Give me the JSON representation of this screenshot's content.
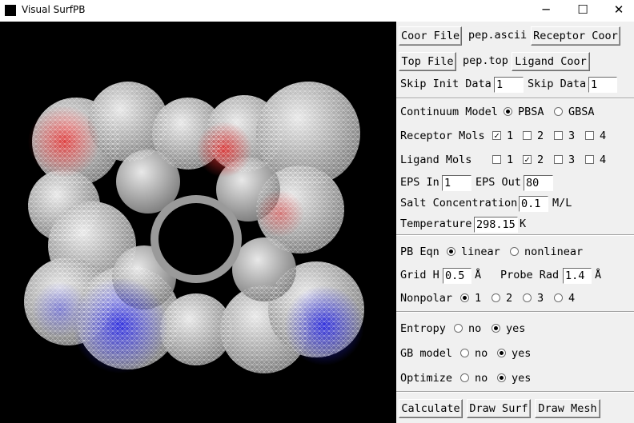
{
  "window": {
    "title": "Visual SurfPB",
    "minimize": "─",
    "maximize": "☐",
    "close": "✕"
  },
  "files": {
    "coor_button": "Coor File",
    "coor_value": "pep.ascii",
    "receptor_coor_button": "Receptor Coor",
    "top_button": "Top File",
    "top_value": "pep.top",
    "ligand_coor_button": "Ligand Coor",
    "skip_init_label": "Skip Init Data",
    "skip_init_value": "1",
    "skip_data_label": "Skip Data",
    "skip_data_value": "1"
  },
  "model": {
    "continuum_label": "Continuum Model",
    "pbsa": "PBSA",
    "gbsa": "GBSA",
    "selected": "PBSA",
    "receptor_label": "Receptor Mols",
    "receptor_checked": [
      true,
      false,
      false,
      false
    ],
    "ligand_label": "Ligand Mols",
    "ligand_checked": [
      false,
      true,
      false,
      false
    ],
    "mol_numbers": [
      "1",
      "2",
      "3",
      "4"
    ],
    "eps_in_label": "EPS In",
    "eps_in_value": "1",
    "eps_out_label": "EPS Out",
    "eps_out_value": "80",
    "salt_label": "Salt Concentration",
    "salt_value": "0.1",
    "salt_unit": "M/L",
    "temp_label": "Temperature",
    "temp_value": "298.15",
    "temp_unit": "K"
  },
  "pb": {
    "eqn_label": "PB Eqn",
    "linear": "linear",
    "nonlinear": "nonlinear",
    "eqn_selected": "linear",
    "grid_label": "Grid H",
    "grid_value": "0.5",
    "grid_unit": "Å",
    "probe_label": "Probe Rad",
    "probe_value": "1.4",
    "probe_unit": "Å",
    "nonpolar_label": "Nonpolar",
    "nonpolar_options": [
      "1",
      "2",
      "3",
      "4"
    ],
    "nonpolar_selected": "1"
  },
  "options": {
    "entropy_label": "Entropy",
    "entropy_selected": "yes",
    "gb_label": "GB model",
    "gb_selected": "yes",
    "optimize_label": "Optimize",
    "optimize_selected": "yes",
    "no": "no",
    "yes": "yes"
  },
  "actions": {
    "calculate": "Calculate",
    "draw_surf": "Draw Surf",
    "draw_mesh": "Draw Mesh"
  },
  "colors": {
    "negative": "#e03030",
    "positive": "#2a2ae0",
    "neutral": "#ffffff",
    "background": "#000000"
  }
}
